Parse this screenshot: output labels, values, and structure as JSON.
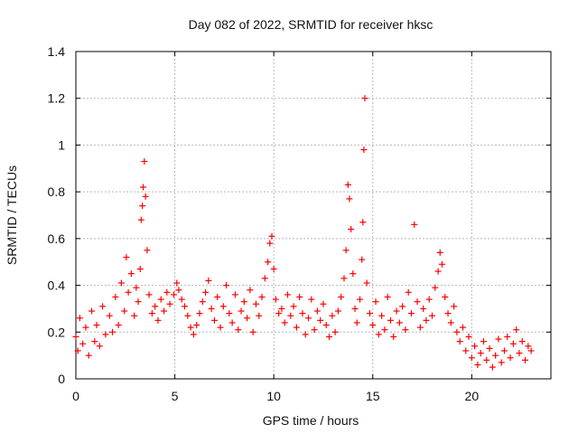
{
  "chart_data": {
    "type": "scatter",
    "title": "Day 082 of 2022, SRMTID for receiver hksc",
    "xlabel": "GPS time / hours",
    "ylabel": "SRMTID / TECUs",
    "xlim": [
      0,
      24.0
    ],
    "ylim": [
      0,
      1.4
    ],
    "x_ticks": [
      0,
      5,
      10,
      15,
      20
    ],
    "x_tick_labels": [
      "0",
      "5",
      "10",
      "15",
      "20"
    ],
    "y_ticks": [
      0,
      0.2,
      0.4,
      0.6,
      0.8,
      1.0,
      1.2,
      1.4
    ],
    "y_tick_labels": [
      "0",
      "0.2",
      "0.4",
      "0.6",
      "0.8",
      "1",
      "1.2",
      "1.4"
    ],
    "grid": true,
    "marker": "+",
    "colors": {
      "series": "#ff0000",
      "axis": "#000000",
      "grid": "#b8b8b8",
      "background": "#ffffff"
    },
    "series": [
      {
        "name": "SRMTID",
        "points": [
          [
            0.0,
            0.18
          ],
          [
            0.1,
            0.12
          ],
          [
            0.2,
            0.26
          ],
          [
            0.35,
            0.15
          ],
          [
            0.5,
            0.22
          ],
          [
            0.65,
            0.1
          ],
          [
            0.8,
            0.29
          ],
          [
            0.95,
            0.16
          ],
          [
            1.05,
            0.23
          ],
          [
            1.2,
            0.14
          ],
          [
            1.35,
            0.31
          ],
          [
            1.5,
            0.19
          ],
          [
            1.7,
            0.27
          ],
          [
            1.85,
            0.2
          ],
          [
            2.0,
            0.35
          ],
          [
            2.15,
            0.23
          ],
          [
            2.3,
            0.41
          ],
          [
            2.45,
            0.29
          ],
          [
            2.55,
            0.52
          ],
          [
            2.65,
            0.37
          ],
          [
            2.8,
            0.45
          ],
          [
            2.95,
            0.27
          ],
          [
            3.05,
            0.39
          ],
          [
            3.15,
            0.33
          ],
          [
            3.25,
            0.47
          ],
          [
            3.3,
            0.68
          ],
          [
            3.36,
            0.74
          ],
          [
            3.4,
            0.82
          ],
          [
            3.46,
            0.93
          ],
          [
            3.52,
            0.78
          ],
          [
            3.6,
            0.55
          ],
          [
            3.7,
            0.36
          ],
          [
            3.85,
            0.28
          ],
          [
            4.0,
            0.31
          ],
          [
            4.15,
            0.25
          ],
          [
            4.3,
            0.34
          ],
          [
            4.45,
            0.29
          ],
          [
            4.6,
            0.37
          ],
          [
            4.75,
            0.32
          ],
          [
            4.95,
            0.36
          ],
          [
            5.1,
            0.41
          ],
          [
            5.2,
            0.38
          ],
          [
            5.35,
            0.34
          ],
          [
            5.5,
            0.31
          ],
          [
            5.65,
            0.27
          ],
          [
            5.8,
            0.22
          ],
          [
            5.95,
            0.19
          ],
          [
            6.1,
            0.23
          ],
          [
            6.25,
            0.28
          ],
          [
            6.4,
            0.33
          ],
          [
            6.55,
            0.37
          ],
          [
            6.7,
            0.42
          ],
          [
            6.85,
            0.3
          ],
          [
            7.0,
            0.25
          ],
          [
            7.15,
            0.35
          ],
          [
            7.3,
            0.22
          ],
          [
            7.45,
            0.31
          ],
          [
            7.6,
            0.4
          ],
          [
            7.75,
            0.28
          ],
          [
            7.9,
            0.24
          ],
          [
            8.05,
            0.36
          ],
          [
            8.2,
            0.21
          ],
          [
            8.35,
            0.29
          ],
          [
            8.5,
            0.33
          ],
          [
            8.65,
            0.26
          ],
          [
            8.8,
            0.38
          ],
          [
            8.95,
            0.2
          ],
          [
            9.1,
            0.32
          ],
          [
            9.25,
            0.27
          ],
          [
            9.4,
            0.35
          ],
          [
            9.55,
            0.43
          ],
          [
            9.7,
            0.5
          ],
          [
            9.8,
            0.58
          ],
          [
            9.9,
            0.61
          ],
          [
            10.0,
            0.47
          ],
          [
            10.1,
            0.34
          ],
          [
            10.25,
            0.28
          ],
          [
            10.4,
            0.3
          ],
          [
            10.55,
            0.24
          ],
          [
            10.7,
            0.36
          ],
          [
            10.85,
            0.27
          ],
          [
            11.0,
            0.31
          ],
          [
            11.15,
            0.22
          ],
          [
            11.3,
            0.35
          ],
          [
            11.45,
            0.28
          ],
          [
            11.6,
            0.19
          ],
          [
            11.75,
            0.26
          ],
          [
            11.9,
            0.34
          ],
          [
            12.05,
            0.21
          ],
          [
            12.2,
            0.29
          ],
          [
            12.35,
            0.25
          ],
          [
            12.5,
            0.32
          ],
          [
            12.65,
            0.23
          ],
          [
            12.8,
            0.18
          ],
          [
            12.95,
            0.27
          ],
          [
            13.1,
            0.2
          ],
          [
            13.25,
            0.29
          ],
          [
            13.4,
            0.35
          ],
          [
            13.55,
            0.43
          ],
          [
            13.65,
            0.55
          ],
          [
            13.75,
            0.83
          ],
          [
            13.82,
            0.77
          ],
          [
            13.9,
            0.64
          ],
          [
            14.0,
            0.45
          ],
          [
            14.1,
            0.3
          ],
          [
            14.2,
            0.24
          ],
          [
            14.35,
            0.34
          ],
          [
            14.45,
            0.51
          ],
          [
            14.5,
            0.67
          ],
          [
            14.55,
            0.98
          ],
          [
            14.6,
            1.2
          ],
          [
            14.7,
            0.41
          ],
          [
            14.85,
            0.28
          ],
          [
            15.0,
            0.23
          ],
          [
            15.15,
            0.33
          ],
          [
            15.3,
            0.19
          ],
          [
            15.45,
            0.27
          ],
          [
            15.6,
            0.21
          ],
          [
            15.75,
            0.35
          ],
          [
            15.9,
            0.25
          ],
          [
            16.05,
            0.18
          ],
          [
            16.2,
            0.29
          ],
          [
            16.35,
            0.24
          ],
          [
            16.5,
            0.31
          ],
          [
            16.65,
            0.21
          ],
          [
            16.8,
            0.37
          ],
          [
            16.95,
            0.28
          ],
          [
            17.1,
            0.66
          ],
          [
            17.25,
            0.33
          ],
          [
            17.4,
            0.22
          ],
          [
            17.55,
            0.3
          ],
          [
            17.7,
            0.25
          ],
          [
            17.85,
            0.34
          ],
          [
            18.0,
            0.27
          ],
          [
            18.15,
            0.39
          ],
          [
            18.3,
            0.46
          ],
          [
            18.4,
            0.54
          ],
          [
            18.5,
            0.49
          ],
          [
            18.65,
            0.35
          ],
          [
            18.8,
            0.28
          ],
          [
            18.95,
            0.24
          ],
          [
            19.1,
            0.31
          ],
          [
            19.25,
            0.2
          ],
          [
            19.4,
            0.16
          ],
          [
            19.55,
            0.22
          ],
          [
            19.7,
            0.12
          ],
          [
            19.85,
            0.18
          ],
          [
            20.0,
            0.09
          ],
          [
            20.15,
            0.14
          ],
          [
            20.3,
            0.06
          ],
          [
            20.45,
            0.11
          ],
          [
            20.6,
            0.16
          ],
          [
            20.75,
            0.08
          ],
          [
            20.9,
            0.13
          ],
          [
            21.05,
            0.05
          ],
          [
            21.2,
            0.1
          ],
          [
            21.35,
            0.17
          ],
          [
            21.5,
            0.07
          ],
          [
            21.65,
            0.12
          ],
          [
            21.8,
            0.18
          ],
          [
            21.95,
            0.09
          ],
          [
            22.1,
            0.15
          ],
          [
            22.25,
            0.21
          ],
          [
            22.4,
            0.11
          ],
          [
            22.55,
            0.16
          ],
          [
            22.7,
            0.08
          ],
          [
            22.85,
            0.14
          ],
          [
            23.0,
            0.12
          ]
        ]
      }
    ]
  }
}
